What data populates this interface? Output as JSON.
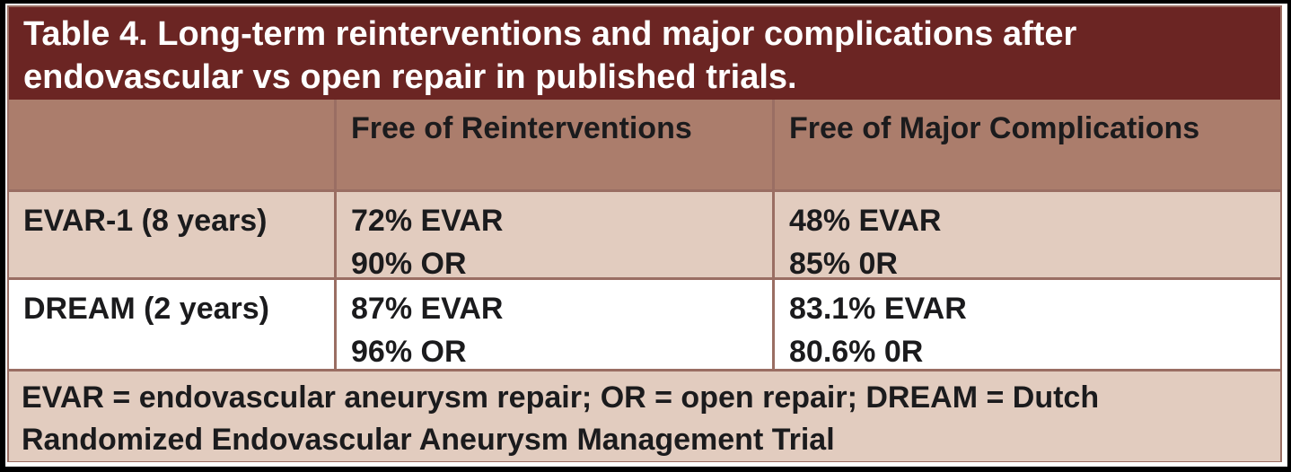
{
  "table": {
    "title": "Table 4. Long-term reinterventions and major complications after endovascular vs open repair in published trials.",
    "columns": {
      "col1": "",
      "col2": "Free of Reinterventions",
      "col3": "Free of Major Complications"
    },
    "rows": [
      {
        "label": "EVAR-1 (8 years)",
        "reinterventions": {
          "evar": "72% EVAR",
          "or": "90% OR"
        },
        "complications": {
          "evar": "48% EVAR",
          "or": "85% 0R"
        }
      },
      {
        "label": "DREAM (2 years)",
        "reinterventions": {
          "evar": "87% EVAR",
          "or": "96% OR"
        },
        "complications": {
          "evar": "83.1% EVAR",
          "or": "80.6% 0R"
        }
      }
    ],
    "footnote": "EVAR = endovascular aneurysm repair; OR = open repair; DREAM = Dutch Randomized Endovascular Aneurysm Management Trial",
    "colors": {
      "title_band": "#6b2523",
      "header_band": "#ab7d6c",
      "row_shaded": "#e2ccbf",
      "row_plain": "#ffffff",
      "border": "#9a6e63",
      "title_text": "#ffffff",
      "body_text": "#1b1b1d",
      "page_frame": "#000000"
    }
  },
  "chart_data": {
    "type": "table",
    "title": "Table 4. Long-term reinterventions and major complications after endovascular vs open repair in published trials.",
    "columns": [
      "",
      "Free of Reinterventions",
      "Free of Major Complications"
    ],
    "rows": [
      [
        "EVAR-1 (8 years)",
        "72% EVAR; 90% OR",
        "48% EVAR; 85% 0R"
      ],
      [
        "DREAM (2 years)",
        "87% EVAR; 96% OR",
        "83.1% EVAR; 80.6% 0R"
      ]
    ],
    "footnote": "EVAR = endovascular aneurysm repair; OR = open repair; DREAM = Dutch Randomized Endovascular Aneurysm Management Trial"
  }
}
